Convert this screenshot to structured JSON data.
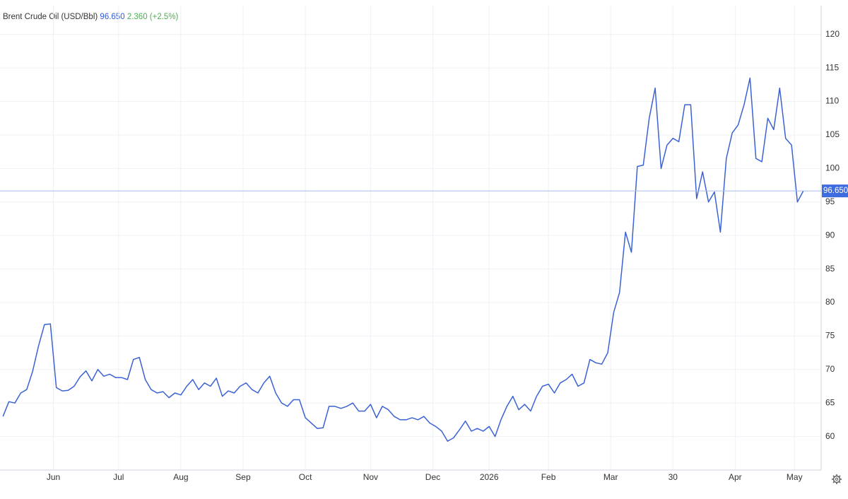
{
  "chart_data": {
    "type": "line",
    "title": "Brent Crude Oil (USD/Bbl)",
    "quote": {
      "price": "96.650",
      "change": "2.360",
      "change_pct": "(+2.5%)"
    },
    "color": "#3a62d4",
    "x": [
      0,
      2,
      4,
      6,
      8,
      10,
      12,
      14,
      16,
      18,
      20,
      22,
      24,
      26,
      28,
      30,
      32,
      34,
      36,
      38,
      40,
      42,
      44,
      46,
      48,
      50,
      52,
      54,
      56,
      58,
      60,
      62,
      64,
      66,
      68,
      70,
      72,
      74,
      76,
      78,
      80,
      82,
      84,
      86,
      88,
      90,
      92,
      94,
      96,
      98,
      100,
      102,
      104,
      106,
      108,
      110,
      112,
      114,
      116,
      118,
      120,
      122,
      124,
      126,
      128,
      130,
      132,
      134,
      136,
      138,
      140,
      142,
      144,
      146,
      148,
      150,
      152,
      154,
      156,
      158,
      160,
      162,
      164,
      166,
      168,
      170,
      172,
      174,
      176,
      178,
      180,
      182,
      184,
      186,
      188,
      190,
      192,
      194,
      196,
      198,
      200,
      202,
      204,
      206,
      208,
      210,
      212,
      214,
      216,
      218,
      220,
      222,
      224,
      226,
      228,
      230,
      232,
      234,
      236,
      238,
      240,
      242,
      244,
      246,
      248,
      250,
      252,
      254,
      256,
      258,
      260,
      262,
      264,
      266,
      268,
      270
    ],
    "values": [
      63.0,
      65.2,
      65.0,
      66.5,
      67.0,
      69.7,
      73.5,
      76.7,
      76.8,
      67.3,
      66.8,
      66.9,
      67.5,
      68.9,
      69.8,
      68.3,
      70.0,
      69.0,
      69.3,
      68.8,
      68.8,
      68.5,
      71.5,
      71.8,
      68.5,
      67.0,
      66.5,
      66.7,
      65.8,
      66.5,
      66.2,
      67.5,
      68.5,
      67.0,
      68.0,
      67.5,
      68.7,
      66.0,
      66.8,
      66.5,
      67.5,
      68.0,
      67.0,
      66.5,
      68.0,
      69.0,
      66.5,
      65.0,
      64.5,
      65.5,
      65.5,
      62.8,
      62.0,
      61.2,
      61.3,
      64.5,
      64.5,
      64.2,
      64.5,
      65.0,
      63.8,
      63.8,
      64.8,
      62.8,
      64.5,
      64.0,
      63.0,
      62.5,
      62.5,
      62.8,
      62.5,
      63.0,
      62.0,
      61.5,
      60.8,
      59.3,
      59.8,
      61.0,
      62.3,
      60.8,
      61.2,
      60.8,
      61.5,
      60.0,
      62.5,
      64.5,
      66.0,
      64.0,
      64.8,
      63.8,
      66.0,
      67.5,
      67.8,
      66.5,
      68.0,
      68.5,
      69.3,
      67.5,
      68.0,
      71.5,
      71.0,
      70.8,
      72.5,
      78.5,
      81.5,
      90.5,
      87.5,
      100.3,
      100.5,
      107.5,
      112.0,
      100.0,
      103.5,
      104.5,
      104.0,
      109.5,
      109.5,
      95.5,
      99.5,
      95.0,
      96.5,
      90.5,
      101.5,
      105.3,
      106.5,
      109.5,
      113.5,
      101.5,
      101.0,
      107.5,
      105.8,
      112.0,
      104.5,
      103.5,
      95.0,
      96.65
    ],
    "xlim": [
      -1,
      276
    ],
    "xticks": [
      {
        "value": 17,
        "label": "Jun"
      },
      {
        "value": 39,
        "label": "Jul"
      },
      {
        "value": 60,
        "label": "Aug"
      },
      {
        "value": 81,
        "label": "Sep"
      },
      {
        "value": 102,
        "label": "Oct"
      },
      {
        "value": 124,
        "label": "Nov"
      },
      {
        "value": 145,
        "label": "Dec"
      },
      {
        "value": 164,
        "label": "2026"
      },
      {
        "value": 184,
        "label": "Feb"
      },
      {
        "value": 205,
        "label": "Mar"
      },
      {
        "value": 226,
        "label": "30"
      },
      {
        "value": 247,
        "label": "Apr"
      },
      {
        "value": 267,
        "label": "May"
      }
    ],
    "ylim": [
      55,
      124.3
    ],
    "yticks": [
      60,
      65,
      70,
      75,
      80,
      85,
      90,
      95,
      100,
      105,
      110,
      115,
      120
    ],
    "grid": true
  }
}
